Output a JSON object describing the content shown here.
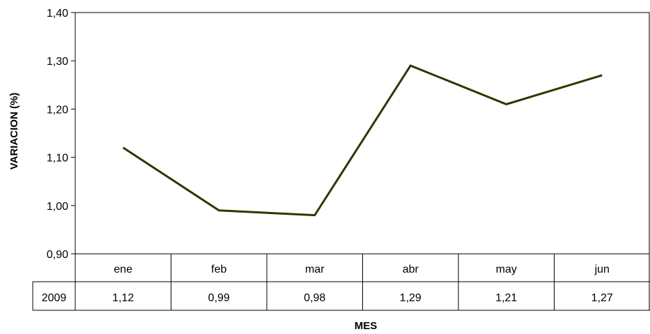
{
  "chart_data": {
    "type": "line",
    "title": "",
    "xlabel": "MES",
    "ylabel": "VARIACION (%)",
    "categories": [
      "ene",
      "feb",
      "mar",
      "abr",
      "may",
      "jun"
    ],
    "ylim": [
      0.9,
      1.4
    ],
    "yticks": [
      "1,40",
      "1,30",
      "1,20",
      "1,10",
      "1,00",
      "0,90"
    ],
    "ytick_values": [
      1.4,
      1.3,
      1.2,
      1.1,
      1.0,
      0.9
    ],
    "grid": false,
    "legend": "none",
    "series": [
      {
        "name": "2009",
        "values": [
          1.12,
          0.99,
          0.98,
          1.29,
          1.21,
          1.27
        ],
        "labels": [
          "1,12",
          "0,99",
          "0,98",
          "1,29",
          "1,21",
          "1,27"
        ],
        "color": "#333300"
      }
    ],
    "data_table": true
  }
}
